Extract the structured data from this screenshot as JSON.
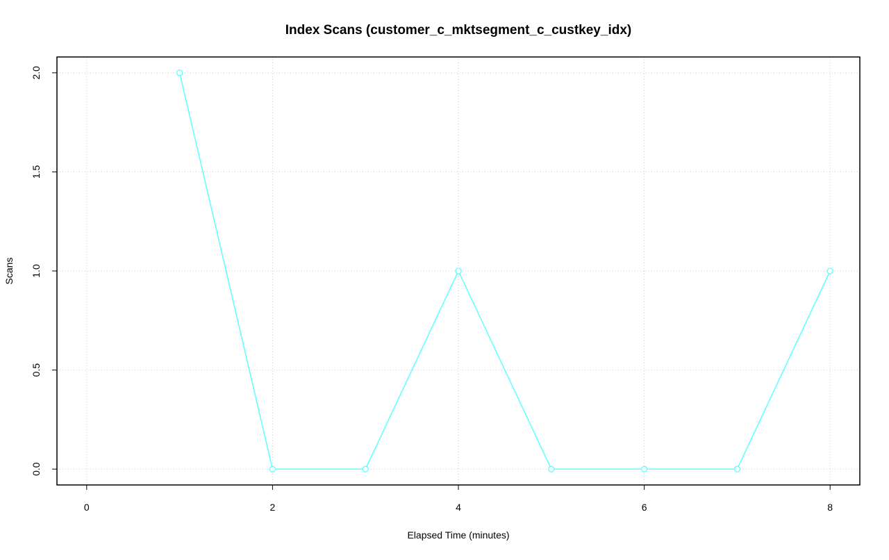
{
  "chart_data": {
    "type": "line",
    "title": "Index Scans (customer_c_mktsegment_c_custkey_idx)",
    "xlabel": "Elapsed Time (minutes)",
    "ylabel": "Scans",
    "x": [
      1,
      2,
      3,
      4,
      5,
      6,
      7,
      8
    ],
    "series": [
      {
        "name": "customer_c_mktsegment_c_custkey_idx",
        "color": "#5cffff",
        "values": [
          2,
          0,
          0,
          1,
          0,
          0,
          0,
          1
        ]
      }
    ],
    "xlim": [
      -0.32,
      8.32
    ],
    "ylim": [
      -0.08,
      2.08
    ],
    "xticks": [
      0,
      2,
      4,
      6,
      8
    ],
    "yticks": [
      {
        "value": 0,
        "label": "0.0"
      },
      {
        "value": 0.5,
        "label": "0.5"
      },
      {
        "value": 1,
        "label": "1.0"
      },
      {
        "value": 1.5,
        "label": "1.5"
      },
      {
        "value": 2,
        "label": "2.0"
      }
    ],
    "grid": true
  }
}
